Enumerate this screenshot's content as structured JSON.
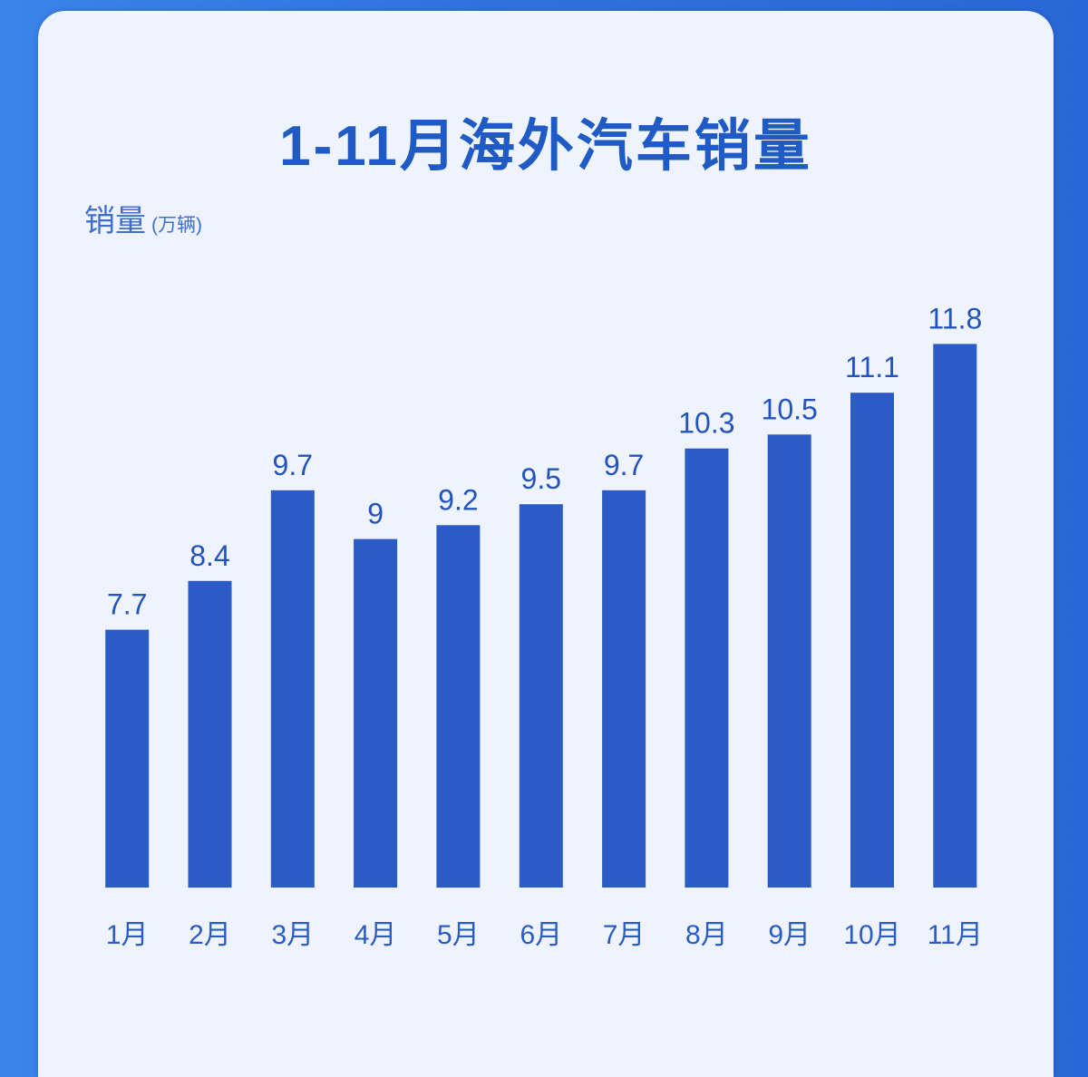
{
  "colors": {
    "bar": "#2b5bc4",
    "title_text": "#1f5ac5",
    "card_background": "#eef3fd"
  },
  "chart_data": {
    "type": "bar",
    "title": "1-11月海外汽车销量",
    "ylabel": "销量",
    "yunit": "(万辆)",
    "xlabel": "",
    "categories": [
      "1月",
      "2月",
      "3月",
      "4月",
      "5月",
      "6月",
      "7月",
      "8月",
      "9月",
      "10月",
      "11月"
    ],
    "values": [
      7.7,
      8.4,
      9.7,
      9,
      9.2,
      9.5,
      9.7,
      10.3,
      10.5,
      11.1,
      11.8
    ],
    "ylim": [
      4,
      12
    ],
    "grid": false,
    "data_labels": true
  }
}
